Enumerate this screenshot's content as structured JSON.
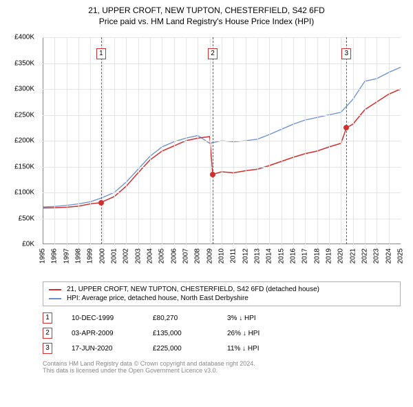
{
  "title": {
    "line1": "21, UPPER CROFT, NEW TUPTON, CHESTERFIELD, S42 6FD",
    "line2": "Price paid vs. HM Land Registry's House Price Index (HPI)"
  },
  "chart": {
    "type": "line",
    "background_color": "#ffffff",
    "grid_color": "#e4e4e4",
    "axis_color": "#888888",
    "x": {
      "min": 1995,
      "max": 2025,
      "step": 1
    },
    "y": {
      "min": 0,
      "max": 400000,
      "step": 50000,
      "ticks": [
        "£0K",
        "£50K",
        "£100K",
        "£150K",
        "£200K",
        "£250K",
        "£300K",
        "£350K",
        "£400K"
      ],
      "tick_fontsize": 10
    },
    "xtick_fontsize": 10,
    "series": [
      {
        "name": "hpi",
        "label": "HPI: Average price, detached house, North East Derbyshire",
        "color": "#6a8fd0",
        "width": 1.3,
        "points": [
          [
            1995,
            72000
          ],
          [
            1996,
            73000
          ],
          [
            1997,
            75000
          ],
          [
            1998,
            78000
          ],
          [
            1999,
            82000
          ],
          [
            2000,
            90000
          ],
          [
            2001,
            100000
          ],
          [
            2002,
            120000
          ],
          [
            2003,
            145000
          ],
          [
            2004,
            170000
          ],
          [
            2005,
            188000
          ],
          [
            2006,
            198000
          ],
          [
            2007,
            205000
          ],
          [
            2008,
            210000
          ],
          [
            2009,
            195000
          ],
          [
            2010,
            200000
          ],
          [
            2011,
            198000
          ],
          [
            2012,
            200000
          ],
          [
            2013,
            203000
          ],
          [
            2014,
            212000
          ],
          [
            2015,
            222000
          ],
          [
            2016,
            232000
          ],
          [
            2017,
            240000
          ],
          [
            2018,
            245000
          ],
          [
            2019,
            250000
          ],
          [
            2020,
            255000
          ],
          [
            2021,
            280000
          ],
          [
            2022,
            315000
          ],
          [
            2023,
            320000
          ],
          [
            2024,
            332000
          ],
          [
            2025,
            342000
          ]
        ]
      },
      {
        "name": "price_paid",
        "label": "21, UPPER CROFT, NEW TUPTON, CHESTERFIELD, S42 6FD (detached house)",
        "color": "#d03030",
        "width": 1.5,
        "points": [
          [
            1995,
            70000
          ],
          [
            1996,
            70500
          ],
          [
            1997,
            71500
          ],
          [
            1998,
            73500
          ],
          [
            1999,
            78000
          ],
          [
            1999.9,
            80270
          ],
          [
            2000,
            82000
          ],
          [
            2001,
            92000
          ],
          [
            2002,
            112000
          ],
          [
            2003,
            138000
          ],
          [
            2004,
            163000
          ],
          [
            2005,
            180000
          ],
          [
            2006,
            190000
          ],
          [
            2007,
            200000
          ],
          [
            2008,
            205000
          ],
          [
            2009,
            208000
          ],
          [
            2009.25,
            135000
          ],
          [
            2010,
            140000
          ],
          [
            2011,
            138000
          ],
          [
            2012,
            142000
          ],
          [
            2013,
            145000
          ],
          [
            2014,
            152000
          ],
          [
            2015,
            160000
          ],
          [
            2016,
            168000
          ],
          [
            2017,
            175000
          ],
          [
            2018,
            180000
          ],
          [
            2019,
            188000
          ],
          [
            2020,
            195000
          ],
          [
            2020.46,
            225000
          ],
          [
            2021,
            232000
          ],
          [
            2022,
            260000
          ],
          [
            2023,
            275000
          ],
          [
            2024,
            290000
          ],
          [
            2025,
            300000
          ]
        ]
      }
    ],
    "markers": [
      {
        "num": "1",
        "x": 1999.9,
        "y": 80270,
        "num_top": 16
      },
      {
        "num": "2",
        "x": 2009.25,
        "y": 135000,
        "num_top": 16
      },
      {
        "num": "3",
        "x": 2020.46,
        "y": 225000,
        "num_top": 16
      }
    ],
    "marker_color": "#d03030",
    "marker_dot_radius": 4
  },
  "legend": {
    "rows": [
      {
        "color": "#d03030",
        "label": "21, UPPER CROFT, NEW TUPTON, CHESTERFIELD, S42 6FD (detached house)"
      },
      {
        "color": "#6a8fd0",
        "label": "HPI: Average price, detached house, North East Derbyshire"
      }
    ]
  },
  "sales": [
    {
      "num": "1",
      "date": "10-DEC-1999",
      "price": "£80,270",
      "hpi": "3% ↓ HPI"
    },
    {
      "num": "2",
      "date": "03-APR-2009",
      "price": "£135,000",
      "hpi": "26% ↓ HPI"
    },
    {
      "num": "3",
      "date": "17-JUN-2020",
      "price": "£225,000",
      "hpi": "11% ↓ HPI"
    }
  ],
  "footer": {
    "line1": "Contains HM Land Registry data © Crown copyright and database right 2024.",
    "line2": "This data is licensed under the Open Government Licence v3.0."
  }
}
